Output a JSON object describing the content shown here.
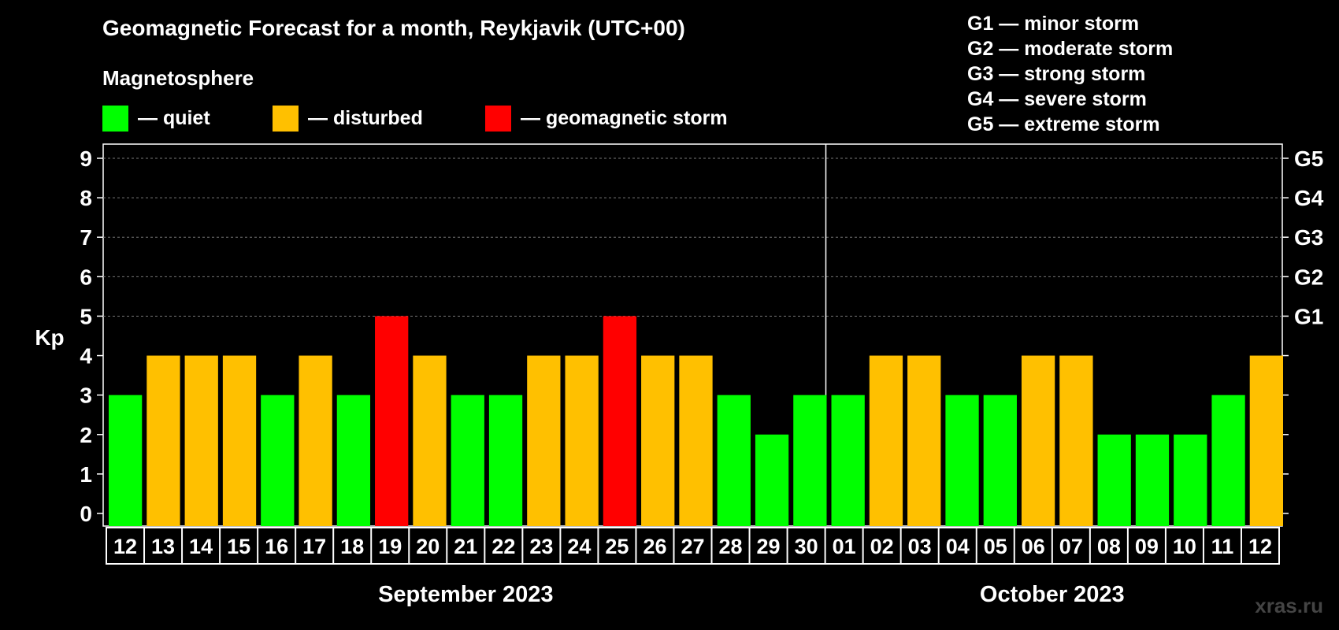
{
  "title": "Geomagnetic Forecast for a month, Reykjavik (UTC+00)",
  "legend": {
    "heading": "Magnetosphere",
    "items": [
      {
        "label": "— quiet",
        "color": "#00ff00"
      },
      {
        "label": "— disturbed",
        "color": "#ffc000"
      },
      {
        "label": "— geomagnetic storm",
        "color": "#ff0000"
      }
    ]
  },
  "storm_levels": [
    "G1 — minor storm",
    "G2 — moderate storm",
    "G3 — strong storm",
    "G4 — severe storm",
    "G5 — extreme storm"
  ],
  "watermark": "xras.ru",
  "chart_data": {
    "type": "bar",
    "ylabel": "Kp",
    "ylim": [
      0,
      9
    ],
    "yticks": [
      "0",
      "1",
      "2",
      "3",
      "4",
      "5",
      "6",
      "7",
      "8",
      "9"
    ],
    "right_tick_labels": [
      {
        "kp": 5,
        "label": "G1"
      },
      {
        "kp": 6,
        "label": "G2"
      },
      {
        "kp": 7,
        "label": "G3"
      },
      {
        "kp": 8,
        "label": "G4"
      },
      {
        "kp": 9,
        "label": "G5"
      }
    ],
    "grid": "dashed horizontal at Kp 5-9",
    "categories": [
      "12",
      "13",
      "14",
      "15",
      "16",
      "17",
      "18",
      "19",
      "20",
      "21",
      "22",
      "23",
      "24",
      "25",
      "26",
      "27",
      "28",
      "29",
      "30",
      "01",
      "02",
      "03",
      "04",
      "05",
      "06",
      "07",
      "08",
      "09",
      "10",
      "11",
      "12"
    ],
    "values": [
      3,
      4,
      4,
      4,
      3,
      4,
      3,
      5,
      4,
      3,
      3,
      4,
      4,
      5,
      4,
      4,
      3,
      2,
      3,
      3,
      4,
      4,
      3,
      3,
      4,
      4,
      2,
      2,
      2,
      3,
      4
    ],
    "months": [
      {
        "label": "September 2023",
        "first_index": 0,
        "last_index": 18
      },
      {
        "label": "October 2023",
        "first_index": 19,
        "last_index": 30
      }
    ],
    "color_rule": {
      "quiet": "#00ff00",
      "disturbed": "#ffc000",
      "storm": "#ff0000"
    }
  }
}
